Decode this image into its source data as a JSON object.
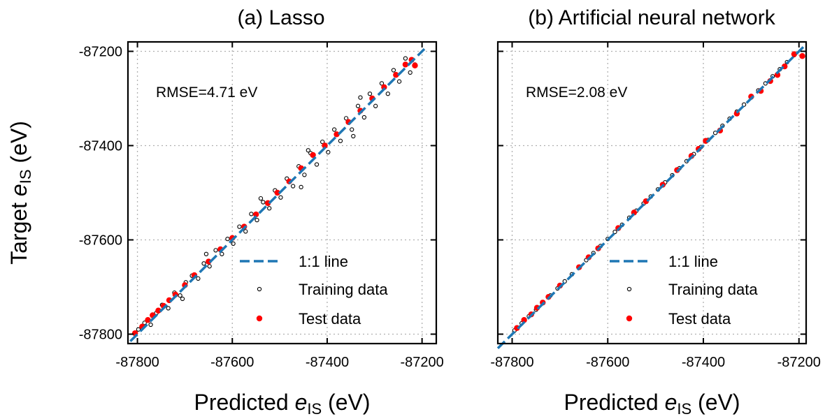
{
  "chart_data": [
    {
      "type": "scatter",
      "title": "(a) Lasso",
      "xlabel_prefix": "Predicted",
      "ylabel_prefix": "Target",
      "label_symbol": "e",
      "label_subscript": "IS",
      "label_unit": "(eV)",
      "xlim": [
        -87820,
        -87170
      ],
      "ylim": [
        -87820,
        -87180
      ],
      "xticks": [
        "-87800",
        "-87600",
        "-87400",
        "-87200"
      ],
      "yticks": [
        "-87200",
        "-87400",
        "-87600",
        "-87800"
      ],
      "grid": true,
      "annotation": "RMSE=4.71 eV",
      "rmse": 4.71,
      "legend_position": "lower-right",
      "legend": {
        "line": "1:1 line",
        "training": "Training data",
        "test": "Test data"
      },
      "identity_line": [
        [
          -87815,
          -87815
        ],
        [
          -87195,
          -87195
        ]
      ],
      "series": [
        {
          "name": "Training data",
          "style": "open-circle",
          "color": "#000000",
          "points": [
            [
              -87798,
              -87790
            ],
            [
              -87785,
              -87776
            ],
            [
              -87772,
              -87780
            ],
            [
              -87760,
              -87755
            ],
            [
              -87748,
              -87738
            ],
            [
              -87735,
              -87745
            ],
            [
              -87722,
              -87712
            ],
            [
              -87710,
              -87718
            ],
            [
              -87698,
              -87690
            ],
            [
              -87685,
              -87676
            ],
            [
              -87672,
              -87682
            ],
            [
              -87660,
              -87650
            ],
            [
              -87648,
              -87656
            ],
            [
              -87635,
              -87622
            ],
            [
              -87622,
              -87630
            ],
            [
              -87610,
              -87598
            ],
            [
              -87598,
              -87608
            ],
            [
              -87585,
              -87572
            ],
            [
              -87572,
              -87582
            ],
            [
              -87560,
              -87545
            ],
            [
              -87548,
              -87558
            ],
            [
              -87535,
              -87520
            ],
            [
              -87522,
              -87533
            ],
            [
              -87510,
              -87495
            ],
            [
              -87498,
              -87510
            ],
            [
              -87485,
              -87470
            ],
            [
              -87472,
              -87486
            ],
            [
              -87460,
              -87444
            ],
            [
              -87448,
              -87462
            ],
            [
              -87435,
              -87416
            ],
            [
              -87422,
              -87440
            ],
            [
              -87410,
              -87392
            ],
            [
              -87398,
              -87414
            ],
            [
              -87385,
              -87366
            ],
            [
              -87372,
              -87390
            ],
            [
              -87360,
              -87342
            ],
            [
              -87348,
              -87366
            ],
            [
              -87335,
              -87316
            ],
            [
              -87322,
              -87340
            ],
            [
              -87310,
              -87290
            ],
            [
              -87298,
              -87316
            ],
            [
              -87285,
              -87268
            ],
            [
              -87272,
              -87290
            ],
            [
              -87260,
              -87240
            ],
            [
              -87248,
              -87264
            ],
            [
              -87235,
              -87215
            ],
            [
              -87225,
              -87245
            ],
            [
              -87215,
              -87228
            ],
            [
              -87330,
              -87298
            ],
            [
              -87345,
              -87380
            ],
            [
              -87440,
              -87410
            ],
            [
              -87455,
              -87488
            ],
            [
              -87540,
              -87512
            ],
            [
              -87655,
              -87630
            ],
            [
              -87705,
              -87725
            ]
          ]
        },
        {
          "name": "Test data",
          "style": "filled-circle",
          "color": "#ff0000",
          "points": [
            [
              -87805,
              -87798
            ],
            [
              -87790,
              -87784
            ],
            [
              -87778,
              -87770
            ],
            [
              -87768,
              -87760
            ],
            [
              -87756,
              -87750
            ],
            [
              -87745,
              -87740
            ],
            [
              -87733,
              -87728
            ],
            [
              -87720,
              -87716
            ],
            [
              -87700,
              -87696
            ],
            [
              -87680,
              -87675
            ],
            [
              -87650,
              -87646
            ],
            [
              -87625,
              -87620
            ],
            [
              -87600,
              -87596
            ],
            [
              -87575,
              -87572
            ],
            [
              -87550,
              -87546
            ],
            [
              -87525,
              -87522
            ],
            [
              -87505,
              -87500
            ],
            [
              -87480,
              -87476
            ],
            [
              -87455,
              -87448
            ],
            [
              -87430,
              -87420
            ],
            [
              -87405,
              -87400
            ],
            [
              -87380,
              -87376
            ],
            [
              -87355,
              -87350
            ],
            [
              -87330,
              -87326
            ],
            [
              -87305,
              -87300
            ],
            [
              -87280,
              -87276
            ],
            [
              -87255,
              -87250
            ],
            [
              -87235,
              -87228
            ],
            [
              -87222,
              -87218
            ],
            [
              -87215,
              -87230
            ]
          ]
        }
      ]
    },
    {
      "type": "scatter",
      "title": "(b) Artificial neural network",
      "xlabel_prefix": "Predicted",
      "ylabel_prefix": "",
      "label_symbol": "e",
      "label_subscript": "IS",
      "label_unit": "(eV)",
      "xlim": [
        -87830,
        -87185
      ],
      "ylim": [
        -87820,
        -87180
      ],
      "xticks": [
        "-87800",
        "-87600",
        "-87400",
        "-87200"
      ],
      "yticks": [],
      "grid": true,
      "annotation": "RMSE=2.08 eV",
      "rmse": 2.08,
      "legend_position": "lower-right",
      "legend": {
        "line": "1:1 line",
        "training": "Training data",
        "test": "Test data"
      },
      "identity_line": [
        [
          -87830,
          -87830
        ],
        [
          -87190,
          -87190
        ]
      ],
      "series": [
        {
          "name": "Training data",
          "style": "open-circle",
          "color": "#000000",
          "points": [
            [
              -87795,
              -87792
            ],
            [
              -87780,
              -87777
            ],
            [
              -87765,
              -87762
            ],
            [
              -87750,
              -87748
            ],
            [
              -87735,
              -87733
            ],
            [
              -87720,
              -87718
            ],
            [
              -87705,
              -87703
            ],
            [
              -87690,
              -87688
            ],
            [
              -87675,
              -87673
            ],
            [
              -87660,
              -87658
            ],
            [
              -87645,
              -87643
            ],
            [
              -87630,
              -87628
            ],
            [
              -87615,
              -87613
            ],
            [
              -87600,
              -87598
            ],
            [
              -87585,
              -87583
            ],
            [
              -87570,
              -87568
            ],
            [
              -87555,
              -87553
            ],
            [
              -87540,
              -87538
            ],
            [
              -87525,
              -87523
            ],
            [
              -87510,
              -87508
            ],
            [
              -87495,
              -87493
            ],
            [
              -87480,
              -87478
            ],
            [
              -87465,
              -87463
            ],
            [
              -87450,
              -87448
            ],
            [
              -87435,
              -87433
            ],
            [
              -87420,
              -87418
            ],
            [
              -87405,
              -87403
            ],
            [
              -87390,
              -87388
            ],
            [
              -87375,
              -87373
            ],
            [
              -87360,
              -87358
            ],
            [
              -87345,
              -87343
            ],
            [
              -87330,
              -87328
            ],
            [
              -87315,
              -87313
            ],
            [
              -87300,
              -87298
            ],
            [
              -87285,
              -87283
            ],
            [
              -87270,
              -87268
            ],
            [
              -87255,
              -87253
            ],
            [
              -87240,
              -87238
            ],
            [
              -87225,
              -87223
            ],
            [
              -87210,
              -87208
            ]
          ]
        },
        {
          "name": "Test data",
          "style": "filled-circle",
          "color": "#ff0000",
          "points": [
            [
              -87790,
              -87787
            ],
            [
              -87775,
              -87770
            ],
            [
              -87760,
              -87758
            ],
            [
              -87748,
              -87744
            ],
            [
              -87736,
              -87733
            ],
            [
              -87724,
              -87721
            ],
            [
              -87700,
              -87697
            ],
            [
              -87660,
              -87658
            ],
            [
              -87640,
              -87637
            ],
            [
              -87620,
              -87618
            ],
            [
              -87578,
              -87575
            ],
            [
              -87545,
              -87542
            ],
            [
              -87520,
              -87518
            ],
            [
              -87485,
              -87483
            ],
            [
              -87455,
              -87452
            ],
            [
              -87425,
              -87422
            ],
            [
              -87410,
              -87407
            ],
            [
              -87395,
              -87390
            ],
            [
              -87365,
              -87368
            ],
            [
              -87330,
              -87332
            ],
            [
              -87300,
              -87296
            ],
            [
              -87280,
              -87284
            ],
            [
              -87260,
              -87263
            ],
            [
              -87245,
              -87250
            ],
            [
              -87230,
              -87232
            ],
            [
              -87210,
              -87206
            ],
            [
              -87193,
              -87210
            ]
          ]
        }
      ]
    }
  ]
}
